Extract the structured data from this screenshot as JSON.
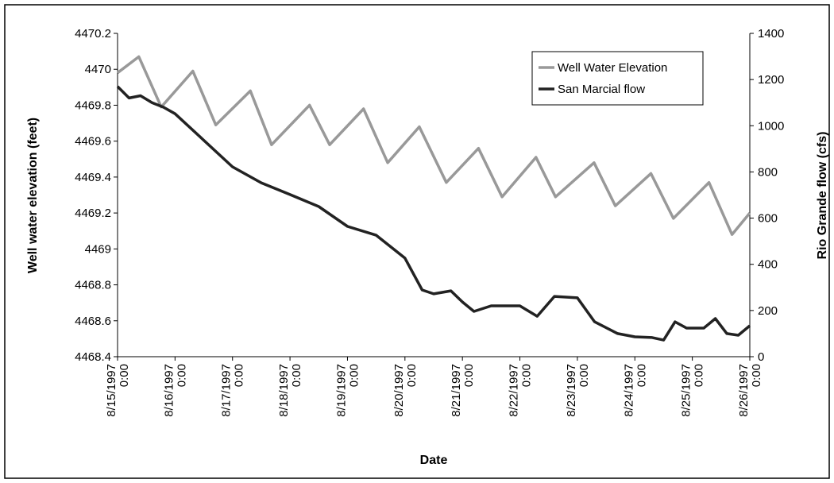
{
  "chart_data": {
    "type": "line",
    "x_label": "Date",
    "y_label": "Well water elevation (feet)",
    "y2_label": "Rio Grande flow (cfs)",
    "xlim": [
      0,
      11
    ],
    "xticks": [
      {
        "value": 0,
        "label": "8/15/1997 0:00"
      },
      {
        "value": 1,
        "label": "8/16/1997 0:00"
      },
      {
        "value": 2,
        "label": "8/17/1997 0:00"
      },
      {
        "value": 3,
        "label": "8/18/1997 0:00"
      },
      {
        "value": 4,
        "label": "8/19/1997 0:00"
      },
      {
        "value": 5,
        "label": "8/20/1997 0:00"
      },
      {
        "value": 6,
        "label": "8/21/1997 0:00"
      },
      {
        "value": 7,
        "label": "8/22/1997 0:00"
      },
      {
        "value": 8,
        "label": "8/23/1997 0:00"
      },
      {
        "value": 9,
        "label": "8/24/1997 0:00"
      },
      {
        "value": 10,
        "label": "8/25/1997 0:00"
      },
      {
        "value": 11,
        "label": "8/26/1997 0:00"
      }
    ],
    "ylim": [
      4468.4,
      4470.2
    ],
    "yticks": [
      4468.4,
      4468.6,
      4468.8,
      4469,
      4469.2,
      4469.4,
      4469.6,
      4469.8,
      4470,
      4470.2
    ],
    "y2lim": [
      0,
      1400
    ],
    "y2ticks": [
      0,
      200,
      400,
      600,
      800,
      1000,
      1200,
      1400
    ],
    "legend": "top right",
    "series": [
      {
        "name": "Well Water Elevation",
        "color": "#999999",
        "x": [
          0,
          0.37,
          0.76,
          1.31,
          1.71,
          2.31,
          2.68,
          3.34,
          3.69,
          4.28,
          4.7,
          5.25,
          5.72,
          6.28,
          6.69,
          7.28,
          7.62,
          8.29,
          8.66,
          9.28,
          9.67,
          10.29,
          10.69,
          11
        ],
        "values": [
          4469.98,
          4470.07,
          4469.79,
          4469.99,
          4469.69,
          4469.88,
          4469.58,
          4469.8,
          4469.58,
          4469.78,
          4469.48,
          4469.68,
          4469.37,
          4469.56,
          4469.29,
          4469.51,
          4469.29,
          4469.48,
          4469.24,
          4469.42,
          4469.17,
          4469.37,
          4469.08,
          4469.2
        ]
      },
      {
        "name": "San Marcial flow",
        "color": "#222222",
        "axis": "y2",
        "x": [
          0,
          0.2,
          0.4,
          0.6,
          0.8,
          1,
          2,
          2.5,
          3,
          3.5,
          4,
          4.5,
          5,
          5.3,
          5.5,
          5.8,
          6,
          6.2,
          6.5,
          7,
          7.3,
          7.6,
          8,
          8.3,
          8.7,
          9,
          9.3,
          9.5,
          9.7,
          9.9,
          10.2,
          10.4,
          10.6,
          10.8,
          11
        ],
        "values": [
          1170,
          1120,
          1130,
          1100,
          1080,
          1052,
          822,
          753,
          702,
          650,
          564,
          526,
          427,
          289,
          272,
          285,
          237,
          196,
          220,
          220,
          175,
          261,
          255,
          151,
          100,
          86,
          83,
          72,
          151,
          124,
          124,
          165,
          100,
          93,
          134
        ]
      }
    ]
  }
}
